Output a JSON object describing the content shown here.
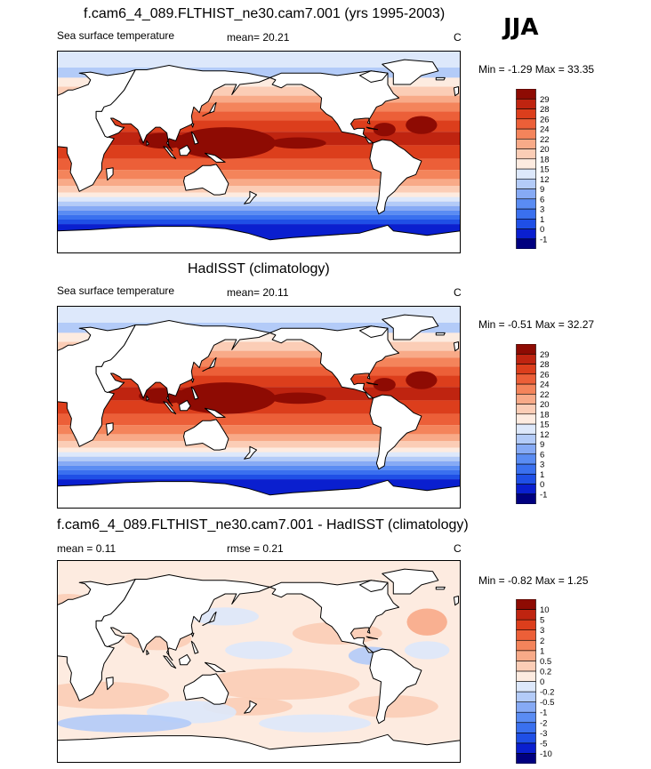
{
  "season": "JJA",
  "colors": {
    "land": "#ffffff",
    "coast": "#000000",
    "sst_scale": [
      "#000080",
      "#0a1fcf",
      "#1f4fe6",
      "#3a70ef",
      "#5a8cf3",
      "#86aaf5",
      "#b3cbf8",
      "#dde8fb",
      "#fdebe0",
      "#fbcdb6",
      "#f8aa88",
      "#f4845b",
      "#ec5f38",
      "#dc3e1c",
      "#bf2410",
      "#8e0b03"
    ],
    "diff_scale": [
      "#000080",
      "#0a1fcf",
      "#1f4fe6",
      "#3a70ef",
      "#5a8cf3",
      "#86aaf5",
      "#b3cbf8",
      "#dde8fb",
      "#fdebe0",
      "#fbcdb6",
      "#f8aa88",
      "#f4845b",
      "#ec5f38",
      "#dc3e1c",
      "#bf2410",
      "#8e0b03"
    ]
  },
  "panels": [
    {
      "title": "f.cam6_4_089.FLTHIST_ne30.cam7.001 (yrs 1995-2003)",
      "variable": "Sea surface temperature",
      "mean_text": "mean=  20.21",
      "units": "C",
      "minmax_text": "Min =  -1.29 Max =  33.35"
    },
    {
      "title": "HadISST (climatology)",
      "variable": "Sea surface temperature",
      "mean_text": "mean=  20.11",
      "units": "C",
      "minmax_text": "Min =  -0.51 Max =  32.27"
    },
    {
      "title": "f.cam6_4_089.FLTHIST_ne30.cam7.001 - HadISST (climatology)",
      "mean_text": "mean =   0.11",
      "rmse_text": "rmse =   0.21",
      "units": "C",
      "minmax_text": "Min =  -0.82 Max =   1.25"
    }
  ],
  "chart_data": [
    {
      "type": "heatmap",
      "title": "f.cam6_4_089.FLTHIST_ne30.cam7.001 (yrs 1995-2003)",
      "field": "Sea surface temperature",
      "units": "C",
      "mean": 20.21,
      "min": -1.29,
      "max": 33.35,
      "colorbar_levels": [
        -1,
        0,
        1,
        3,
        6,
        9,
        12,
        15,
        18,
        20,
        22,
        24,
        26,
        28,
        29
      ]
    },
    {
      "type": "heatmap",
      "title": "HadISST (climatology)",
      "field": "Sea surface temperature",
      "units": "C",
      "mean": 20.11,
      "min": -0.51,
      "max": 32.27,
      "colorbar_levels": [
        -1,
        0,
        1,
        3,
        6,
        9,
        12,
        15,
        18,
        20,
        22,
        24,
        26,
        28,
        29
      ]
    },
    {
      "type": "heatmap",
      "title": "f.cam6_4_089.FLTHIST_ne30.cam7.001 - HadISST (climatology)",
      "units": "C",
      "mean": 0.11,
      "rmse": 0.21,
      "min": -0.82,
      "max": 1.25,
      "colorbar_levels": [
        -10,
        -5,
        -3,
        -2,
        -1,
        -0.5,
        -0.2,
        0,
        0.2,
        0.5,
        1,
        2,
        3,
        5,
        10
      ]
    }
  ]
}
